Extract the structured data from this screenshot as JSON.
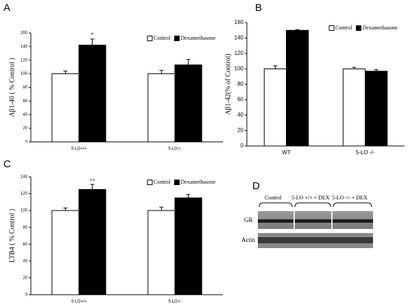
{
  "chart_data": [
    {
      "type": "bar",
      "panel": "A",
      "y_label": "Aβ1-40 ( % Control )",
      "categories": [
        "5-LO+/+",
        "5-LO-/-"
      ],
      "series": [
        {
          "name": "Control",
          "color": "#ffffff",
          "values": [
            100,
            100
          ],
          "errors": [
            4,
            5
          ]
        },
        {
          "name": "Dexamethasone",
          "color": "#000000",
          "values": [
            142,
            113
          ],
          "errors": [
            9,
            8
          ],
          "annotations": [
            "*",
            null
          ]
        }
      ],
      "ylim": [
        0,
        160
      ],
      "yticks": [
        0,
        20,
        40,
        60,
        80,
        100,
        120,
        140,
        160
      ],
      "legend": "upper right",
      "grid": false
    },
    {
      "type": "bar",
      "panel": "B",
      "y_label": "Aβ1-42(% of Control)",
      "categories": [
        "WT",
        "5-LO -/-"
      ],
      "series": [
        {
          "name": "Control",
          "color": "#ffffff",
          "values": [
            100,
            100
          ],
          "errors": [
            4,
            2
          ]
        },
        {
          "name": "Dexamethasone",
          "color": "#000000",
          "values": [
            150,
            97
          ],
          "errors": [
            1,
            2
          ]
        }
      ],
      "ylim": [
        0,
        160
      ],
      "yticks": [
        0,
        20,
        40,
        60,
        80,
        100,
        120,
        140,
        160
      ],
      "legend": "upper right",
      "grid": false
    },
    {
      "type": "bar",
      "panel": "C",
      "y_label": "LTB4 ( % Control )",
      "categories": [
        "5-LO+/+",
        "5-LO-/-"
      ],
      "series": [
        {
          "name": "Control",
          "color": "#ffffff",
          "values": [
            100,
            100
          ],
          "errors": [
            3,
            4
          ]
        },
        {
          "name": "Dexamethasone",
          "color": "#000000",
          "values": [
            125,
            115
          ],
          "errors": [
            6,
            4
          ],
          "annotations": [
            "++",
            null
          ]
        }
      ],
      "ylim": [
        0,
        140
      ],
      "yticks": [
        0,
        20,
        40,
        60,
        80,
        100,
        120,
        140
      ],
      "legend": "upper right",
      "grid": false
    }
  ],
  "blot": {
    "panel": "D",
    "column_labels": [
      "Control",
      "5-LO +/+ + DEX",
      "5-LO -/- + DEX"
    ],
    "row_labels": [
      "GR",
      "Actin"
    ]
  }
}
